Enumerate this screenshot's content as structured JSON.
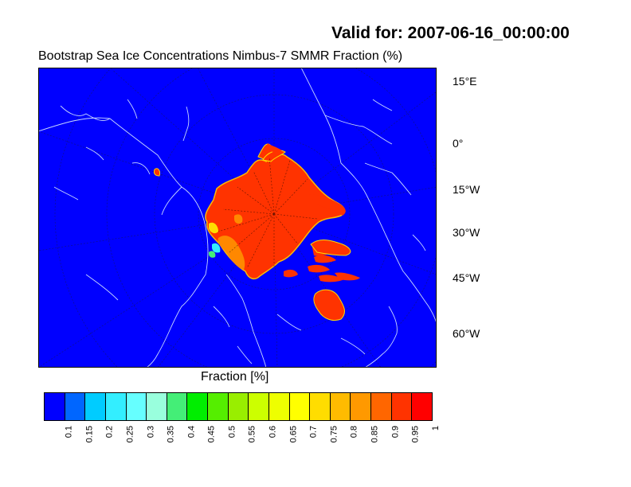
{
  "valid_label": "Valid for: 2007-06-16_00:00:00",
  "title": "Bootstrap Sea Ice Concentrations Nimbus-7 SMMR   Fraction (%)",
  "lat_labels": [
    "15°E",
    "0°",
    "15°W",
    "30°W",
    "45°W",
    "60°W"
  ],
  "colorbar": {
    "title": "Fraction [%]",
    "ticks": [
      "0.1",
      "0.15",
      "0.2",
      "0.25",
      "0.3",
      "0.35",
      "0.4",
      "0.45",
      "0.5",
      "0.55",
      "0.6",
      "0.65",
      "0.7",
      "0.75",
      "0.8",
      "0.85",
      "0.9",
      "0.95",
      "1"
    ],
    "colors": [
      "#0000ff",
      "#0066ff",
      "#00ccff",
      "#33eeff",
      "#66ffff",
      "#99ffdd",
      "#44ee77",
      "#00ee00",
      "#55ee00",
      "#99ee00",
      "#ccff00",
      "#eeff00",
      "#ffff00",
      "#ffdd00",
      "#ffbb00",
      "#ff9900",
      "#ff6600",
      "#ff3300",
      "#ff0000"
    ]
  },
  "colors": {
    "ocean_fill": "#0000ff",
    "ice_fill": "#ff3300",
    "coastline": "#c8d8ff"
  }
}
